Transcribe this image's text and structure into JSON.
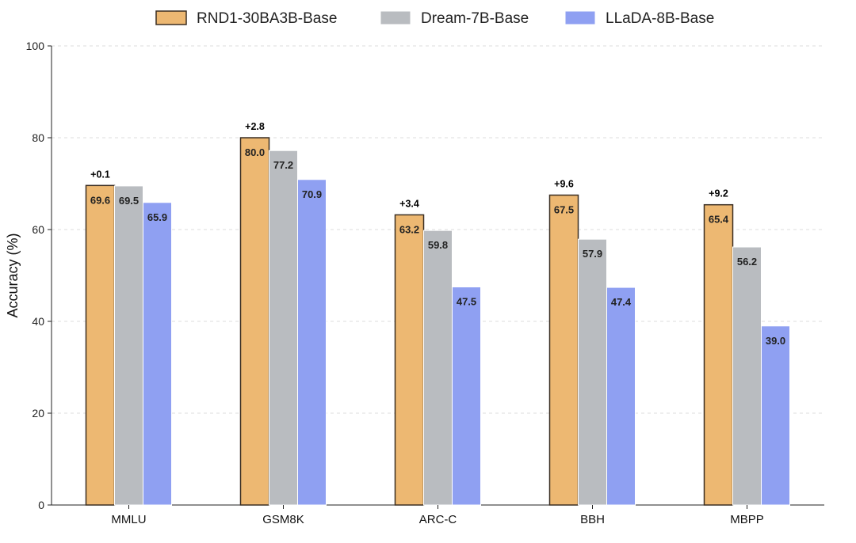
{
  "chart_data": {
    "type": "bar",
    "title": "",
    "xlabel": "",
    "ylabel": "Accuracy (%)",
    "ylim": [
      0,
      100
    ],
    "yticks": [
      0,
      20,
      40,
      60,
      80,
      100
    ],
    "grid": "horizontal dashed",
    "legend_position": "top-center",
    "categories": [
      "MMLU",
      "GSM8K",
      "ARC-C",
      "BBH",
      "MBPP"
    ],
    "series": [
      {
        "name": "RND1-30BA3B-Base",
        "color": "#EDB872",
        "edge": "#3a2e22",
        "values": [
          69.6,
          80.0,
          63.2,
          67.5,
          65.4
        ]
      },
      {
        "name": "Dream-7B-Base",
        "color": "#B9BCC0",
        "edge": "#ffffff",
        "values": [
          69.5,
          77.2,
          59.8,
          57.9,
          56.2
        ]
      },
      {
        "name": "LLaDA-8B-Base",
        "color": "#8FA0F2",
        "edge": "#ffffff",
        "values": [
          65.9,
          70.9,
          47.5,
          47.4,
          39.0
        ]
      }
    ],
    "value_labels": [
      [
        "69.6",
        "80.0",
        "63.2",
        "67.5",
        "65.4"
      ],
      [
        "69.5",
        "77.2",
        "59.8",
        "57.9",
        "56.2"
      ],
      [
        "65.9",
        "70.9",
        "47.5",
        "47.4",
        "39.0"
      ]
    ],
    "annotations": [
      "+0.1",
      "+2.8",
      "+3.4",
      "+9.6",
      "+9.2"
    ]
  }
}
